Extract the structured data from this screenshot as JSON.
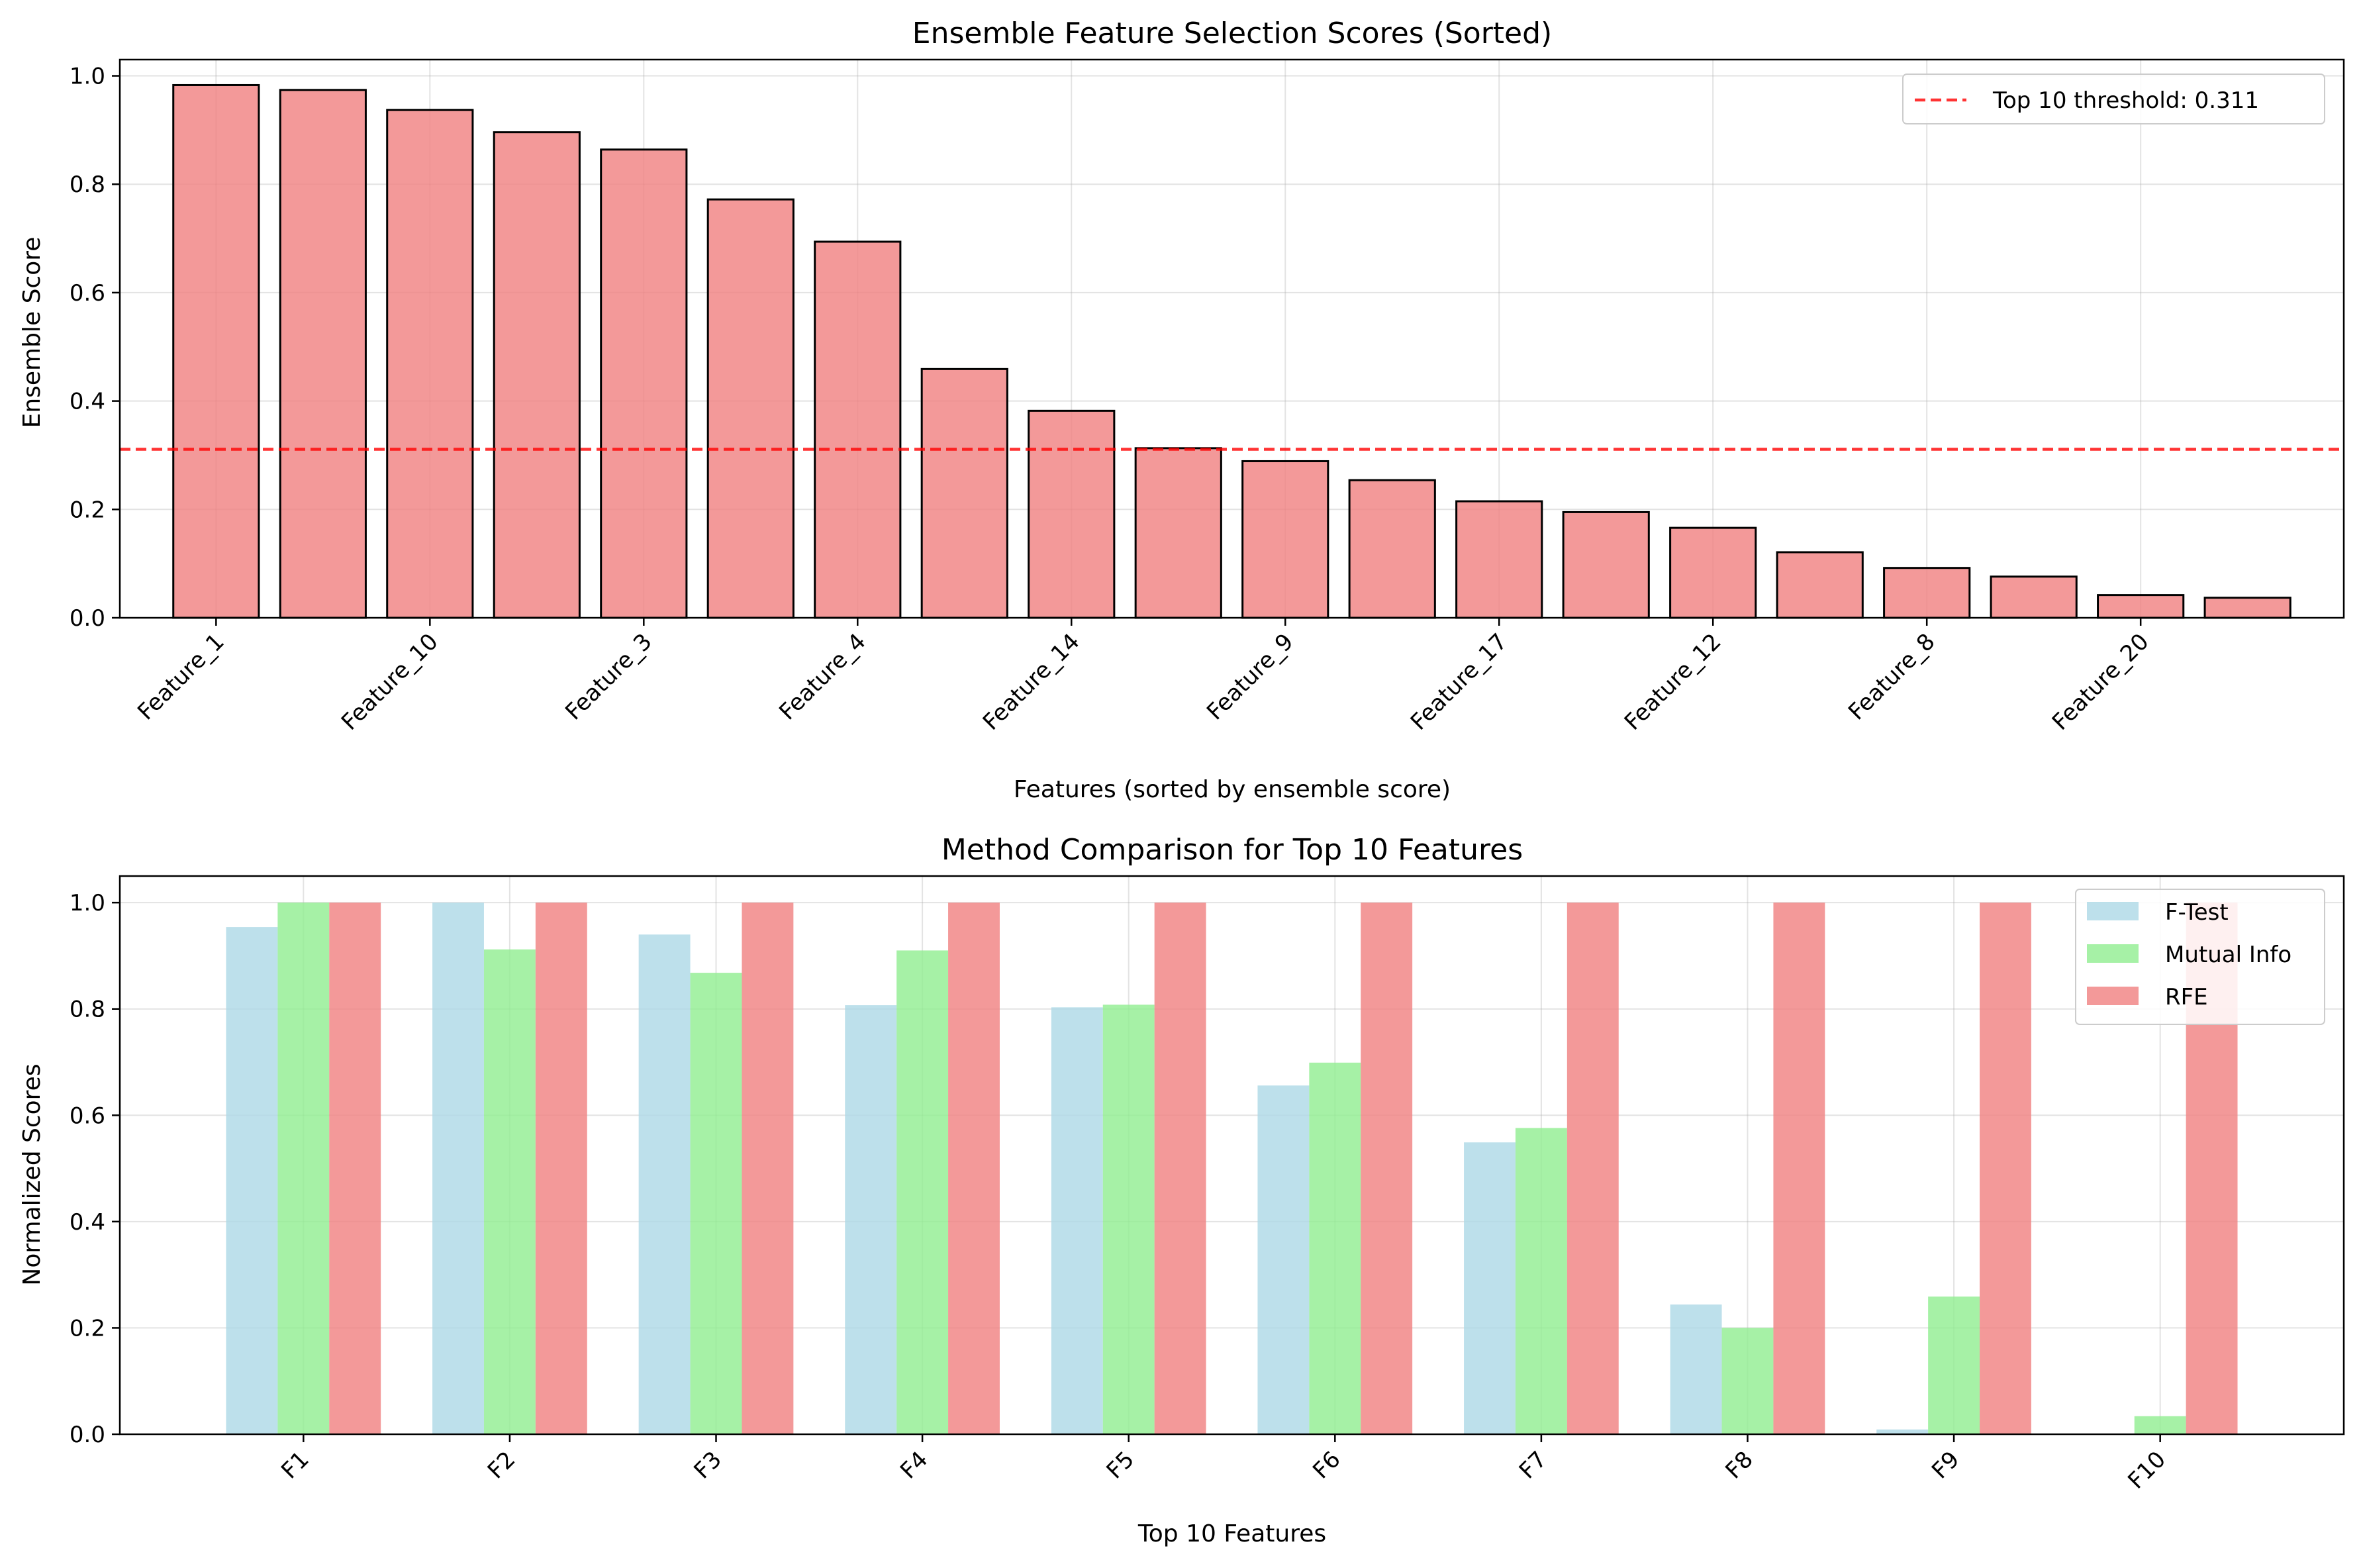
{
  "colors": {
    "ensemble_bar": "#f08080",
    "ensemble_edge": "#000000",
    "threshold_line": "#ff0000",
    "f_test": "#add8e6",
    "mutual_info": "#90ee90",
    "rfe": "#f08080"
  },
  "chart_data": [
    {
      "type": "bar",
      "title": "Ensemble Feature Selection Scores (Sorted)",
      "xlabel": "Features (sorted by ensemble score)",
      "ylabel": "Ensemble Score",
      "ylim": [
        0,
        1.03
      ],
      "yticks": [
        "0.0",
        "0.2",
        "0.4",
        "0.6",
        "0.8",
        "1.0"
      ],
      "grid": true,
      "legend_position": "top-right",
      "categories": [
        "Feature_1",
        "",
        "Feature_10",
        "",
        "Feature_3",
        "",
        "Feature_4",
        "",
        "Feature_14",
        "",
        "Feature_9",
        "",
        "Feature_17",
        "",
        "Feature_12",
        "",
        "Feature_8",
        "",
        "Feature_20",
        ""
      ],
      "values": [
        0.983,
        0.974,
        0.937,
        0.896,
        0.864,
        0.772,
        0.694,
        0.459,
        0.382,
        0.313,
        0.289,
        0.254,
        0.215,
        0.195,
        0.166,
        0.121,
        0.092,
        0.076,
        0.042,
        0.037
      ],
      "threshold": {
        "value": 0.311,
        "label": "Top 10 threshold: 0.311"
      }
    },
    {
      "type": "bar",
      "title": "Method Comparison for Top 10 Features",
      "xlabel": "Top 10 Features",
      "ylabel": "Normalized Scores",
      "ylim": [
        0,
        1.05
      ],
      "yticks": [
        "0.0",
        "0.2",
        "0.4",
        "0.6",
        "0.8",
        "1.0"
      ],
      "grid": true,
      "legend_position": "top-right",
      "categories": [
        "F1",
        "F2",
        "F3",
        "F4",
        "F5",
        "F6",
        "F7",
        "F8",
        "F9",
        "F10"
      ],
      "series": [
        {
          "name": "F-Test",
          "values": [
            0.954,
            1.0,
            0.94,
            0.807,
            0.803,
            0.656,
            0.549,
            0.244,
            0.009,
            0.0
          ]
        },
        {
          "name": "Mutual Info",
          "values": [
            1.0,
            0.912,
            0.868,
            0.91,
            0.808,
            0.699,
            0.576,
            0.2,
            0.259,
            0.034
          ]
        },
        {
          "name": "RFE",
          "values": [
            1.0,
            1.0,
            1.0,
            1.0,
            1.0,
            1.0,
            1.0,
            1.0,
            1.0,
            1.0
          ]
        }
      ]
    }
  ]
}
